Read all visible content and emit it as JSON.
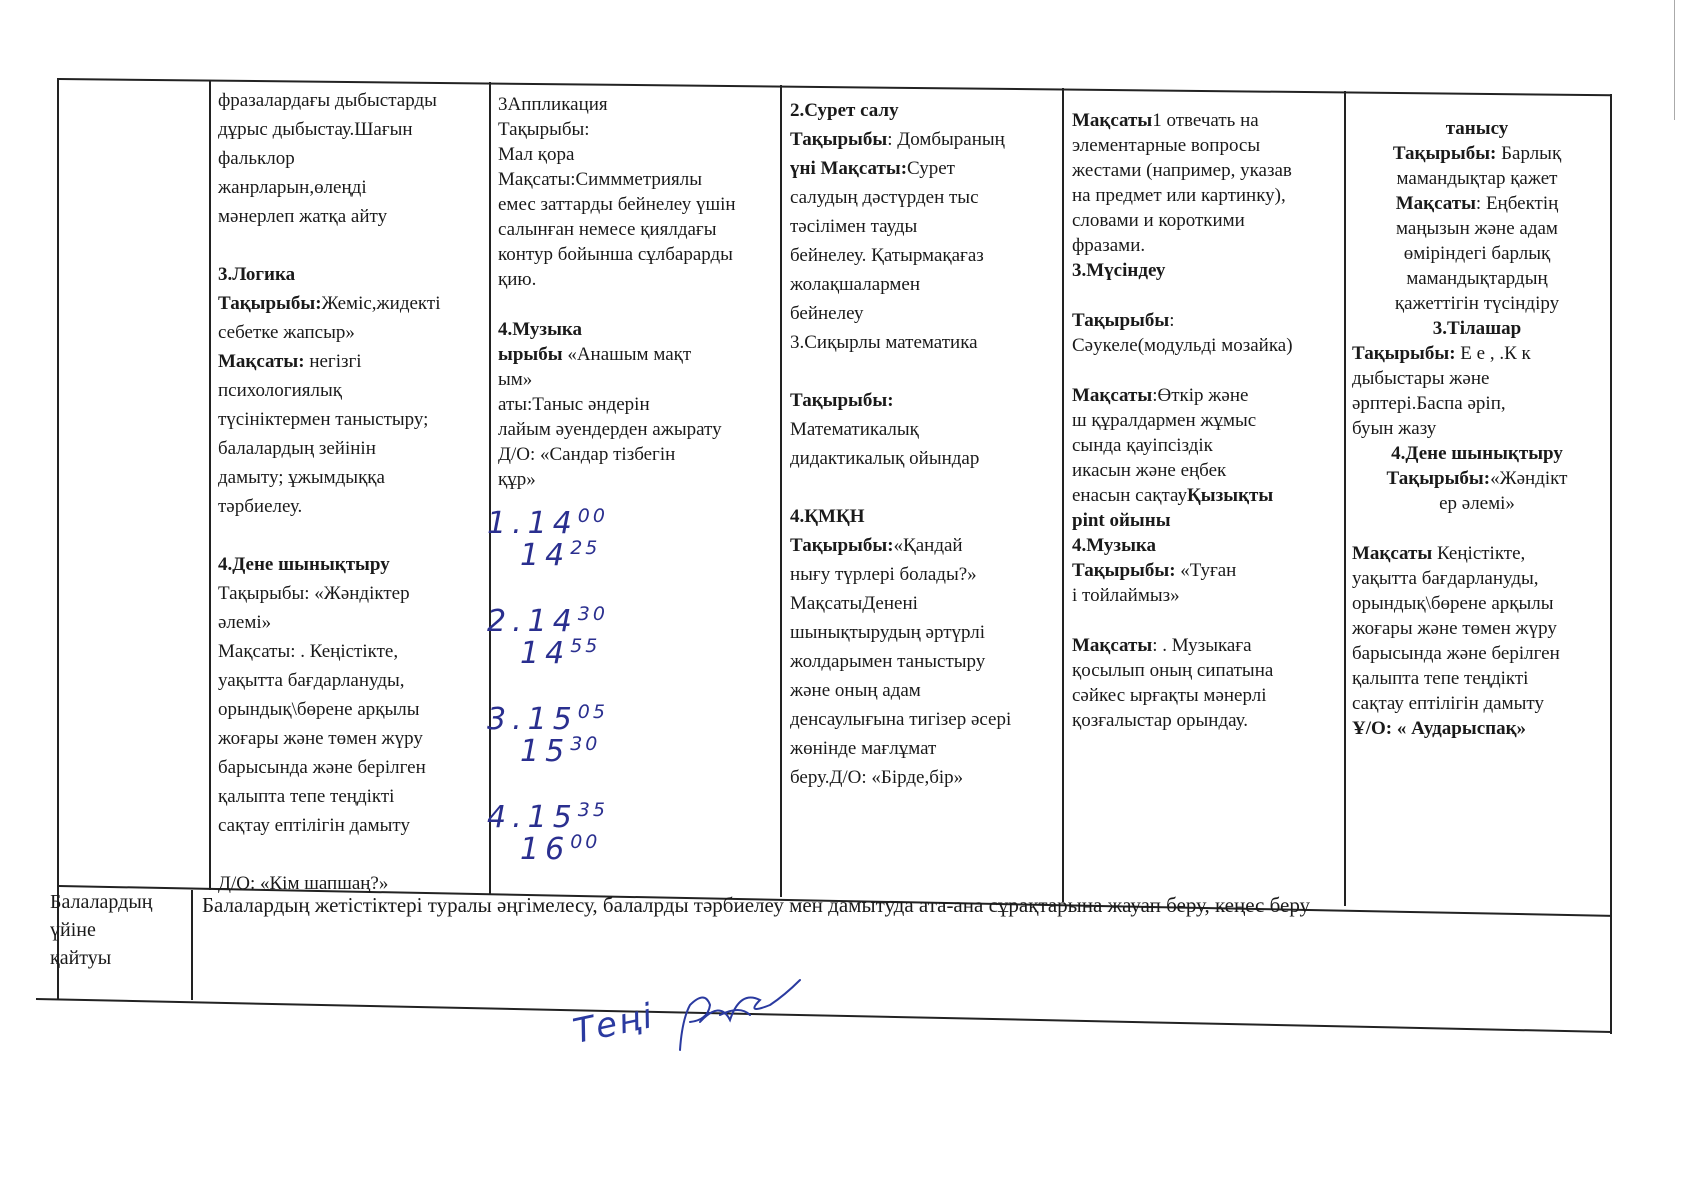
{
  "table": {
    "columns": [
      {
        "lines": [
          [
            "",
            "фразалардағы  дыбыстарды"
          ],
          [
            "",
            "дұрыс дыбыстау.Шағын"
          ],
          [
            "",
            "фальклор"
          ],
          [
            "",
            "жанрларын,өлеңді"
          ],
          [
            "",
            "мәнерлеп жатқа айту"
          ],
          [
            "",
            ""
          ],
          [
            "3.Логика",
            ""
          ],
          [
            "Тақырыбы:",
            "Жеміс,жидекті"
          ],
          [
            "",
            "себетке жапсыр»"
          ],
          [
            "Мақсаты:",
            " негізгі"
          ],
          [
            "",
            "психологиялық"
          ],
          [
            "",
            "түсініктермен таныстыру;"
          ],
          [
            "",
            "балалардың  зейінін"
          ],
          [
            "",
            "дамыту; ұжымдыққа"
          ],
          [
            "",
            "тәрбиелеу."
          ],
          [
            "",
            ""
          ],
          [
            "4.Дене шынықтыру",
            ""
          ],
          [
            "",
            " Тақырыбы: «Жәндіктер"
          ],
          [
            "",
            "          әлемі»"
          ],
          [
            "",
            "Мақсаты: . Кеңістікте,"
          ],
          [
            "",
            "уақытта бағдарлануды,"
          ],
          [
            "",
            "орындық\\бөрене арқылы"
          ],
          [
            "",
            "жоғары және төмен жүру"
          ],
          [
            "",
            "барысында және берілген"
          ],
          [
            "",
            "қалыпта тепе теңдікті"
          ],
          [
            "",
            "сақтау ептілігін дамыту"
          ],
          [
            "",
            ""
          ],
          [
            "",
            "Д/О: «Кім шапшаң?»"
          ]
        ]
      },
      {
        "lines": [
          [
            "",
            "3Аппликация"
          ],
          [
            "",
            " Тақырыбы:"
          ],
          [
            "",
            " Мал қора"
          ],
          [
            "",
            " Мақсаты:Симмметриялы"
          ],
          [
            "",
            "емес заттарды бейнелеу үшін"
          ],
          [
            "",
            "салынған немесе қиялдағы"
          ],
          [
            "",
            "контур бойынша сұлбарарды"
          ],
          [
            "",
            "қию."
          ],
          [
            "",
            ""
          ],
          [
            " 4.Музыка",
            ""
          ],
          [
            "ырыбы",
            " «Анашым мақт"
          ],
          [
            "",
            "ым»"
          ],
          [
            "",
            "аты:Таныс әндерін"
          ],
          [
            "",
            "лайым әуендерден ажырату"
          ],
          [
            "",
            "  Д/О: «Сандар тізбегін"
          ],
          [
            "",
            "  құр»"
          ]
        ],
        "handwritten_times": [
          [
            "1.14",
            "00"
          ],
          [
            "14",
            "25"
          ],
          [
            "2.14",
            "30"
          ],
          [
            "14",
            "55"
          ],
          [
            "3.15",
            "05"
          ],
          [
            "15",
            "30"
          ],
          [
            "4.15",
            "35"
          ],
          [
            "16",
            "00"
          ]
        ]
      },
      {
        "lines": [
          [
            "2.Сурет салу",
            ""
          ],
          [
            "Тақырыбы",
            ": Домбыраның"
          ],
          [
            "үні Мақсаты:",
            "Сурет"
          ],
          [
            "",
            "салудың дәстүрден тыс"
          ],
          [
            "",
            "тәсілімен тауды"
          ],
          [
            "",
            "бейнелеу. Қатырмақағаз"
          ],
          [
            "",
            "жолақшалармен"
          ],
          [
            "",
            "бейнелеу"
          ],
          [
            "",
            "3.Сиқырлы математика"
          ],
          [
            "",
            ""
          ],
          [
            "Тақырыбы:",
            ""
          ],
          [
            "",
            "Математикалық"
          ],
          [
            "",
            " дидактикалық ойындар"
          ],
          [
            "",
            ""
          ],
          [
            " 4.ҚМҚН",
            ""
          ],
          [
            "    Тақырыбы:",
            "«Қандай"
          ],
          [
            "",
            "нығу түрлері болады?»"
          ],
          [
            "",
            " МақсатыДенені"
          ],
          [
            "",
            " шынықтырудың әртүрлі"
          ],
          [
            "",
            " жолдарымен таныстыру"
          ],
          [
            "",
            " және оның адам"
          ],
          [
            "",
            " денсаулығына тигізер әсері"
          ],
          [
            "",
            " жөнінде мағлұмат"
          ],
          [
            "",
            " беру.Д/О: «Бірде,бір»"
          ]
        ]
      },
      {
        "lines": [
          [
            "Мақсаты",
            "1 отвечать на"
          ],
          [
            "",
            "элементарные вопросы"
          ],
          [
            "",
            "жестами (например, указав"
          ],
          [
            "",
            "на предмет или картинку),"
          ],
          [
            "",
            "словами и короткими"
          ],
          [
            "",
            "фразами."
          ],
          [
            "3.Мүсіндеу",
            ""
          ],
          [
            "",
            ""
          ],
          [
            "Тақырыбы",
            ":"
          ],
          [
            "",
            "Сәукеле(модульді мозайка)"
          ],
          [
            "",
            ""
          ],
          [
            " Мақсаты",
            ":Өткір және"
          ],
          [
            "",
            "ш құралдармен жұмыс"
          ],
          [
            "",
            "сында қауіпсіздік"
          ],
          [
            "",
            "икасын және еңбек"
          ],
          [
            "",
            "енасын сақтау",
            "Қызықты"
          ],
          [
            "рint ойыны",
            ""
          ],
          [
            " 4.Музыка",
            ""
          ],
          [
            "  Тақырыбы:",
            " «Туған"
          ],
          [
            "",
            "і тойлаймыз»"
          ],
          [
            "",
            ""
          ],
          [
            "Мақсаты",
            ": . Музыкаға"
          ],
          [
            "",
            "қосылып оның сипатына"
          ],
          [
            "",
            "сәйкес ырғақты мәнерлі"
          ],
          [
            "",
            "қозғалыстар орындау."
          ]
        ]
      },
      {
        "lines": [
          [
            "танысу",
            ""
          ],
          [
            "Тақырыбы:",
            " Барлық"
          ],
          [
            "",
            "мамандықтар қажет"
          ],
          [
            "Мақсаты",
            ": Еңбектің"
          ],
          [
            "",
            "маңызын және адам"
          ],
          [
            "",
            "өміріндегі барлық"
          ],
          [
            "",
            "мамандықтардың"
          ],
          [
            "",
            "қажеттігін түсіндіру"
          ],
          [
            "3.Тілашар",
            ""
          ],
          [
            "Тақырыбы:",
            " Е е , .К к"
          ],
          [
            "",
            "дыбыстары және"
          ],
          [
            "",
            "әрптері.Баспа әріп,"
          ],
          [
            "",
            "буын жазу"
          ],
          [
            "4.Дене шынықтыру",
            ""
          ],
          [
            "Тақырыбы:",
            "«Жәндікт"
          ],
          [
            "",
            "ер әлемі»"
          ],
          [
            "",
            ""
          ],
          [
            "Мақсаты",
            " Кеңістікте,"
          ],
          [
            "",
            "уақытта бағдарлануды,"
          ],
          [
            "",
            "орындық\\бөрене арқылы"
          ],
          [
            "",
            "жоғары және төмен жүру"
          ],
          [
            "",
            "барысында және берілген"
          ],
          [
            "",
            "қалыпта тепе теңдікті"
          ],
          [
            "",
            "сақтау ептілігін дамыту"
          ],
          [
            "Ұ/О: « Аударыспақ»",
            ""
          ]
        ]
      }
    ],
    "bottom_row": {
      "label": [
        "Балалардың",
        "үйіне",
        "қайтуы"
      ],
      "text": "Балалардың жетістіктері туралы әңгімелесу, балалрды тәрбиелеу мен дамытуда ата-ана сұрақтарына жауап беру, кеңес беру"
    }
  },
  "signature": {
    "text": "Теңі"
  },
  "colors": {
    "ink": "#1a1a1a",
    "handwriting": "#2a2f8f"
  }
}
